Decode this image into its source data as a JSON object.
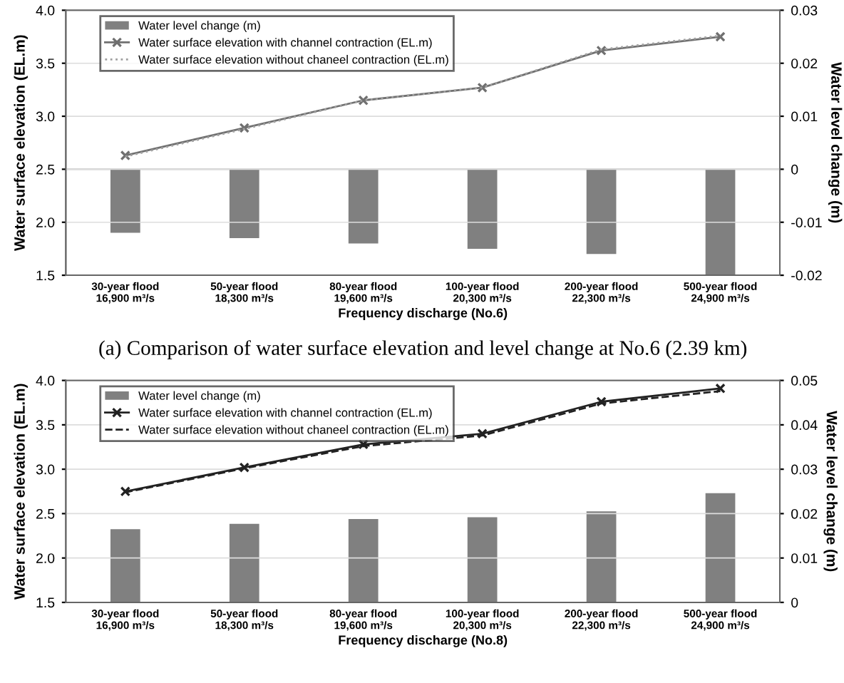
{
  "chart_data": [
    {
      "type": "line",
      "xlabel": "Frequency discharge (No.6)",
      "ylabel": "Water surface elevation (EL.m)",
      "y2label": "Water level change (m)",
      "categories": [
        "30-year flood\n16,900 m³/s",
        "50-year flood\n18,300 m³/s",
        "80-year flood\n19,600 m³/s",
        "100-year flood\n20,300 m³/s",
        "200-year flood\n22,300 m³/s",
        "500-year flood\n24,900 m³/s"
      ],
      "ylim": [
        1.5,
        4.0
      ],
      "yticks": [
        {
          "value": 1.5,
          "label": "1.5"
        },
        {
          "value": 2.0,
          "label": "2.0"
        },
        {
          "value": 2.5,
          "label": "2.5"
        },
        {
          "value": 3.0,
          "label": "3.0"
        },
        {
          "value": 3.5,
          "label": "3.5"
        },
        {
          "value": 4.0,
          "label": "4.0"
        }
      ],
      "y2lim": [
        -0.02,
        0.03
      ],
      "y2ticks": [
        -0.02,
        -0.01,
        {
          "value": 0,
          "label": "0"
        },
        0.01,
        0.02,
        0.03
      ],
      "grid": "y",
      "legend": "top left",
      "annotations": [
        "(a) Comparison of water surface elevation and level change at No.6 (2.39 km)"
      ],
      "series": [
        {
          "name": "Water level change (m)",
          "type": "bar",
          "axis": "y2",
          "color": "#808080",
          "values": [
            -0.012,
            -0.013,
            -0.014,
            -0.015,
            -0.016,
            -0.02
          ]
        },
        {
          "name": "Water surface elevation with channel contraction (EL.m)",
          "color": "#707070",
          "marker": "cross",
          "line_style": "solid",
          "values": [
            2.63,
            2.89,
            3.15,
            3.27,
            3.62,
            3.75
          ]
        },
        {
          "name": "Water surface elevation without chaneel contraction (EL.m)",
          "color": "#a0a0a0",
          "marker": "none",
          "line_style": "dotted",
          "values": [
            2.62,
            2.88,
            3.15,
            3.27,
            3.63,
            3.76
          ]
        }
      ]
    },
    {
      "type": "line",
      "xlabel": "Frequency discharge (No.8)",
      "ylabel": "Water surface elevation (EL.m)",
      "y2label": "Water level change (m)",
      "categories": [
        "30-year flood\n16,900 m³/s",
        "50-year flood\n18,300 m³/s",
        "80-year flood\n19,600 m³/s",
        "100-year flood\n20,300 m³/s",
        "200-year flood\n22,300 m³/s",
        "500-year flood\n24,900 m³/s"
      ],
      "ylim": [
        1.5,
        4.0
      ],
      "yticks": [
        {
          "value": 1.5,
          "label": "1.5"
        },
        {
          "value": 2.0,
          "label": "2.0"
        },
        {
          "value": 2.5,
          "label": "2.5"
        },
        {
          "value": 3.0,
          "label": "3.0"
        },
        {
          "value": 3.5,
          "label": "3.5"
        },
        {
          "value": 4.0,
          "label": "4.0"
        }
      ],
      "y2lim": [
        0,
        0.05
      ],
      "y2ticks": [
        0,
        0.01,
        0.02,
        0.03,
        0.04,
        0.05
      ],
      "grid": "y",
      "legend": "top left",
      "series": [
        {
          "name": "Water level change (m)",
          "type": "bar",
          "axis": "y2",
          "color": "#808080",
          "values": [
            0.0165,
            0.0177,
            0.0188,
            0.0192,
            0.0205,
            0.0246
          ]
        },
        {
          "name": "Water surface elevation with channel contraction (EL.m)",
          "color": "#222222",
          "marker": "cross",
          "line_style": "solid",
          "values": [
            2.75,
            3.02,
            3.28,
            3.4,
            3.76,
            3.91
          ]
        },
        {
          "name": "Water surface elevation without chaneel contraction (EL.m)",
          "color": "#222222",
          "marker": "none",
          "line_style": "dashed",
          "values": [
            2.74,
            3.01,
            3.26,
            3.38,
            3.74,
            3.88
          ]
        }
      ]
    }
  ]
}
